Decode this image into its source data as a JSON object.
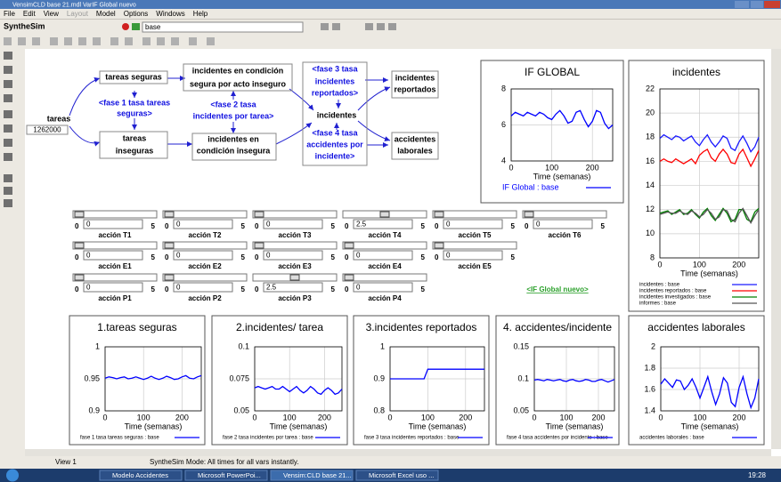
{
  "window": {
    "title": "VensimCLD base 21.mdl VarIF Global nuevo"
  },
  "menu": [
    {
      "label": "File",
      "enabled": true
    },
    {
      "label": "Edit",
      "enabled": true
    },
    {
      "label": "View",
      "enabled": true
    },
    {
      "label": "Layout",
      "enabled": false
    },
    {
      "label": "Model",
      "enabled": true
    },
    {
      "label": "Options",
      "enabled": true
    },
    {
      "label": "Windows",
      "enabled": true
    },
    {
      "label": "Help",
      "enabled": true
    }
  ],
  "toolbar": {
    "mode": "SyntheSim",
    "run": "base"
  },
  "diagram": {
    "nodes": [
      {
        "lines": [
          "tareas seguras"
        ]
      },
      {
        "lines": [
          "incidentes en condición",
          "segura por acto inseguro"
        ]
      },
      {
        "lines": [
          "<fase 3 tasa",
          "incidentes",
          "reportados>"
        ]
      },
      {
        "lines": [
          "incidentes",
          "reportados"
        ]
      },
      {
        "lines": [
          "<fase 1 tasa tareas",
          "seguras>"
        ]
      },
      {
        "lines": [
          "<fase 2 tasa",
          "incidentes por tarea>"
        ]
      },
      {
        "lines": [
          "incidentes"
        ]
      },
      {
        "lines": [
          "tareas"
        ]
      },
      {
        "lines": [
          "1262000"
        ]
      },
      {
        "lines": [
          "tareas",
          "inseguras"
        ]
      },
      {
        "lines": [
          "incidentes en",
          "condición insegura"
        ]
      },
      {
        "lines": [
          "<fase 4 tasa",
          "accidentes por",
          "incidente>"
        ]
      },
      {
        "lines": [
          "accidentes",
          "laborales"
        ]
      },
      {
        "lines": [
          "<IF Global nuevo>"
        ]
      }
    ]
  },
  "sliders": [
    [
      {
        "name": "acción T1",
        "value": 0,
        "min": 0,
        "max": 5
      },
      {
        "name": "acción T2",
        "value": 0,
        "min": 0,
        "max": 5
      },
      {
        "name": "acción T3",
        "value": 0,
        "min": 0,
        "max": 5
      },
      {
        "name": "acción T4",
        "value": 2.5,
        "min": 0,
        "max": 5
      },
      {
        "name": "acción T5",
        "value": 0,
        "min": 0,
        "max": 5
      },
      {
        "name": "acción T6",
        "value": 0,
        "min": 0,
        "max": 5
      }
    ],
    [
      {
        "name": "acción E1",
        "value": 0,
        "min": 0,
        "max": 5
      },
      {
        "name": "acción E2",
        "value": 0,
        "min": 0,
        "max": 5
      },
      {
        "name": "acción E3",
        "value": 0,
        "min": 0,
        "max": 5
      },
      {
        "name": "acción E4",
        "value": 0,
        "min": 0,
        "max": 5
      },
      {
        "name": "acción E5",
        "value": 0,
        "min": 0,
        "max": 5
      }
    ],
    [
      {
        "name": "acción P1",
        "value": 0,
        "min": 0,
        "max": 5
      },
      {
        "name": "acción P2",
        "value": 0,
        "min": 0,
        "max": 5
      },
      {
        "name": "acción P3",
        "value": 2.5,
        "min": 0,
        "max": 5
      },
      {
        "name": "acción P4",
        "value": 0,
        "min": 0,
        "max": 5
      }
    ]
  ],
  "chart_data": [
    {
      "type": "line",
      "title": "IF GLOBAL",
      "xlabel": "Time (semanas)",
      "grid": true,
      "x": [
        0,
        10,
        20,
        30,
        40,
        50,
        60,
        70,
        80,
        90,
        100,
        110,
        120,
        130,
        140,
        150,
        160,
        170,
        180,
        190,
        200,
        210,
        220,
        230,
        240,
        250
      ],
      "xlim": [
        0,
        250
      ],
      "xticks": [
        0,
        100,
        200
      ],
      "ylim": [
        4,
        8
      ],
      "yticks": [
        4,
        6,
        8
      ],
      "series": [
        {
          "name": "IF Global : base",
          "color": "#0000ff",
          "values": [
            6.5,
            6.7,
            6.6,
            6.5,
            6.7,
            6.6,
            6.5,
            6.7,
            6.6,
            6.4,
            6.3,
            6.6,
            6.8,
            6.5,
            6.1,
            6.2,
            6.7,
            6.8,
            6.3,
            5.9,
            6.2,
            6.8,
            6.7,
            6.1,
            5.8,
            6.0
          ]
        }
      ]
    },
    {
      "type": "line",
      "title": "incidentes",
      "xlabel": "Time (semanas)",
      "grid": true,
      "x": [
        0,
        10,
        20,
        30,
        40,
        50,
        60,
        70,
        80,
        90,
        100,
        110,
        120,
        130,
        140,
        150,
        160,
        170,
        180,
        190,
        200,
        210,
        220,
        230,
        240,
        250
      ],
      "xlim": [
        0,
        250
      ],
      "xticks": [
        0,
        100,
        200
      ],
      "ylim": [
        8,
        22
      ],
      "yticks": [
        8,
        10,
        12,
        14,
        16,
        18,
        20,
        22
      ],
      "series": [
        {
          "name": "incidentes : base",
          "color": "#1a1aff",
          "values": [
            17.9,
            18.2,
            18.0,
            17.8,
            18.1,
            18.0,
            17.7,
            17.9,
            18.1,
            17.6,
            17.3,
            17.8,
            18.2,
            17.6,
            17.2,
            17.6,
            18.1,
            17.9,
            17.1,
            16.9,
            17.6,
            18.1,
            17.5,
            16.8,
            17.2,
            18.0
          ]
        },
        {
          "name": "incidentes reportados : base",
          "color": "#ff0000",
          "values": [
            16.0,
            16.2,
            16.0,
            15.9,
            16.2,
            16.0,
            15.8,
            16.0,
            16.2,
            15.8,
            16.5,
            16.8,
            17.0,
            16.3,
            16.0,
            16.6,
            17.0,
            16.6,
            15.9,
            15.8,
            16.6,
            17.0,
            16.3,
            15.6,
            16.2,
            16.9
          ]
        },
        {
          "name": "incidentes investigados : base",
          "color": "#008000",
          "values": [
            11.7,
            11.8,
            11.9,
            11.6,
            11.8,
            12.0,
            11.6,
            11.7,
            12.0,
            11.6,
            11.3,
            11.8,
            12.1,
            11.5,
            11.1,
            11.6,
            12.1,
            11.7,
            11.0,
            11.2,
            12.0,
            12.0,
            11.2,
            11.0,
            11.8,
            12.1
          ]
        },
        {
          "name": "informes : base",
          "color": "#555555",
          "values": [
            11.6,
            11.7,
            11.8,
            11.7,
            11.7,
            11.9,
            11.7,
            11.6,
            11.9,
            11.7,
            11.4,
            11.6,
            12.0,
            11.7,
            11.2,
            11.4,
            12.0,
            11.9,
            11.2,
            11.0,
            11.7,
            12.1,
            11.5,
            10.9,
            11.5,
            12.0
          ]
        }
      ]
    },
    {
      "type": "line",
      "title": "1.tareas seguras",
      "xlabel": "Time (semanas)",
      "grid": true,
      "x": [
        0,
        10,
        20,
        30,
        40,
        50,
        60,
        70,
        80,
        90,
        100,
        110,
        120,
        130,
        140,
        150,
        160,
        170,
        180,
        190,
        200,
        210,
        220,
        230,
        240,
        250
      ],
      "xlim": [
        0,
        250
      ],
      "xticks": [
        0,
        100,
        200
      ],
      "ylim": [
        0.9,
        1
      ],
      "yticks": [
        0.9,
        0.95,
        1
      ],
      "series": [
        {
          "name": "fase 1 tasa tareas seguras : base",
          "color": "#0000ff",
          "values": [
            0.951,
            0.953,
            0.952,
            0.95,
            0.952,
            0.953,
            0.95,
            0.951,
            0.953,
            0.951,
            0.949,
            0.951,
            0.954,
            0.951,
            0.949,
            0.951,
            0.954,
            0.952,
            0.949,
            0.95,
            0.953,
            0.955,
            0.951,
            0.95,
            0.953,
            0.955
          ]
        }
      ]
    },
    {
      "type": "line",
      "title": "2.incidentes/ tarea",
      "xlabel": "Time (semanas)",
      "grid": true,
      "x": [
        0,
        10,
        20,
        30,
        40,
        50,
        60,
        70,
        80,
        90,
        100,
        110,
        120,
        130,
        140,
        150,
        160,
        170,
        180,
        190,
        200,
        210,
        220,
        230,
        240,
        250
      ],
      "xlim": [
        0,
        250
      ],
      "xticks": [
        0,
        100,
        200
      ],
      "ylim": [
        0.05,
        0.1
      ],
      "yticks": [
        0.05,
        0.075,
        0.1
      ],
      "series": [
        {
          "name": "fase 2 tasa incidentes por tarea : base",
          "color": "#0000ff",
          "values": [
            0.068,
            0.069,
            0.068,
            0.067,
            0.068,
            0.069,
            0.067,
            0.067,
            0.069,
            0.067,
            0.065,
            0.067,
            0.069,
            0.066,
            0.064,
            0.066,
            0.069,
            0.067,
            0.064,
            0.063,
            0.066,
            0.068,
            0.066,
            0.063,
            0.064,
            0.067
          ]
        }
      ]
    },
    {
      "type": "line",
      "title": "3.incidentes reportados",
      "xlabel": "Time (semanas)",
      "grid": true,
      "x": [
        0,
        10,
        20,
        30,
        40,
        50,
        60,
        70,
        80,
        90,
        100,
        110,
        120,
        130,
        140,
        150,
        160,
        170,
        180,
        190,
        200,
        210,
        220,
        230,
        240,
        250
      ],
      "xlim": [
        0,
        250
      ],
      "xticks": [
        0,
        100,
        200
      ],
      "ylim": [
        0.8,
        1
      ],
      "yticks": [
        0.8,
        0.9,
        1
      ],
      "series": [
        {
          "name": "fase 3 tasa incidentes reportados : base",
          "color": "#0000ff",
          "values": [
            0.9,
            0.9,
            0.9,
            0.9,
            0.9,
            0.9,
            0.9,
            0.9,
            0.9,
            0.9,
            0.93,
            0.93,
            0.93,
            0.93,
            0.93,
            0.93,
            0.93,
            0.93,
            0.93,
            0.93,
            0.93,
            0.93,
            0.93,
            0.93,
            0.93,
            0.93
          ]
        }
      ]
    },
    {
      "type": "line",
      "title": "4. accidentes/incidente",
      "xlabel": "Time (semanas)",
      "grid": true,
      "x": [
        0,
        10,
        20,
        30,
        40,
        50,
        60,
        70,
        80,
        90,
        100,
        110,
        120,
        130,
        140,
        150,
        160,
        170,
        180,
        190,
        200,
        210,
        220,
        230,
        240,
        250
      ],
      "xlim": [
        0,
        250
      ],
      "xticks": [
        0,
        100,
        200
      ],
      "ylim": [
        0.05,
        0.15
      ],
      "yticks": [
        0.05,
        0.1,
        0.15
      ],
      "series": [
        {
          "name": "fase 4 tasa accidentes por incidente : base",
          "color": "#0000ff",
          "values": [
            0.098,
            0.099,
            0.098,
            0.097,
            0.099,
            0.098,
            0.097,
            0.098,
            0.099,
            0.097,
            0.096,
            0.098,
            0.099,
            0.097,
            0.096,
            0.097,
            0.099,
            0.098,
            0.096,
            0.096,
            0.098,
            0.099,
            0.097,
            0.095,
            0.097,
            0.099
          ]
        }
      ]
    },
    {
      "type": "line",
      "title": "accidentes laborales",
      "xlabel": "Time (semanas)",
      "grid": true,
      "x": [
        0,
        10,
        20,
        30,
        40,
        50,
        60,
        70,
        80,
        90,
        100,
        110,
        120,
        130,
        140,
        150,
        160,
        170,
        180,
        190,
        200,
        210,
        220,
        230,
        240,
        250
      ],
      "xlim": [
        0,
        250
      ],
      "xticks": [
        0,
        100,
        200
      ],
      "ylim": [
        1.4,
        2
      ],
      "yticks": [
        1.4,
        1.6,
        1.8,
        2
      ],
      "series": [
        {
          "name": "accidentes laborales : base",
          "color": "#0000ff",
          "values": [
            1.65,
            1.7,
            1.66,
            1.62,
            1.69,
            1.68,
            1.6,
            1.64,
            1.7,
            1.62,
            1.52,
            1.62,
            1.72,
            1.58,
            1.46,
            1.56,
            1.71,
            1.66,
            1.48,
            1.44,
            1.62,
            1.72,
            1.56,
            1.43,
            1.52,
            1.7
          ]
        }
      ]
    }
  ],
  "status": {
    "view": "View 1",
    "message": "SyntheSim Mode: All times for all vars instantly."
  },
  "taskbar": {
    "items": [
      "Modelo Accidentes",
      "Microsoft PowerPoi...",
      "Vensim:CLD base 21...",
      "Microsoft Excel uso ..."
    ],
    "clock": "19:28"
  }
}
